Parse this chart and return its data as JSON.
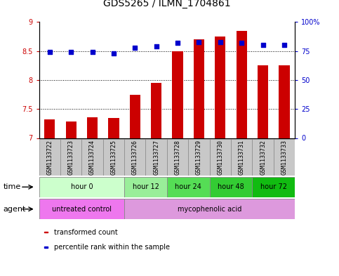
{
  "title": "GDS5265 / ILMN_1704861",
  "samples": [
    "GSM1133722",
    "GSM1133723",
    "GSM1133724",
    "GSM1133725",
    "GSM1133726",
    "GSM1133727",
    "GSM1133728",
    "GSM1133729",
    "GSM1133730",
    "GSM1133731",
    "GSM1133732",
    "GSM1133733"
  ],
  "bar_values": [
    7.32,
    7.28,
    7.36,
    7.34,
    7.75,
    7.95,
    8.5,
    8.7,
    8.75,
    8.85,
    8.25,
    8.25
  ],
  "dot_values": [
    74,
    74,
    74,
    73,
    78,
    79,
    82,
    83,
    83,
    82,
    80,
    80
  ],
  "ylim_left": [
    7,
    9
  ],
  "ylim_right": [
    0,
    100
  ],
  "yticks_left": [
    7,
    7.5,
    8,
    8.5,
    9
  ],
  "yticks_right": [
    0,
    25,
    50,
    75,
    100
  ],
  "yticklabels_right": [
    "0",
    "25",
    "50",
    "75",
    "100%"
  ],
  "bar_color": "#cc0000",
  "dot_color": "#0000cc",
  "bar_bottom": 7,
  "time_groups": [
    {
      "label": "hour 0",
      "start": 0,
      "end": 4,
      "color": "#ccffcc"
    },
    {
      "label": "hour 12",
      "start": 4,
      "end": 6,
      "color": "#99ee99"
    },
    {
      "label": "hour 24",
      "start": 6,
      "end": 8,
      "color": "#55dd55"
    },
    {
      "label": "hour 48",
      "start": 8,
      "end": 10,
      "color": "#33cc33"
    },
    {
      "label": "hour 72",
      "start": 10,
      "end": 12,
      "color": "#11bb11"
    }
  ],
  "agent_groups": [
    {
      "label": "untreated control",
      "start": 0,
      "end": 4,
      "color": "#ee77ee"
    },
    {
      "label": "mycophenolic acid",
      "start": 4,
      "end": 12,
      "color": "#dd99dd"
    }
  ],
  "tick_label_color_left": "#cc0000",
  "tick_label_color_right": "#0000cc",
  "legend_items": [
    {
      "label": "transformed count",
      "color": "#cc0000"
    },
    {
      "label": "percentile rank within the sample",
      "color": "#0000cc"
    }
  ],
  "time_row_label": "time",
  "agent_row_label": "agent",
  "title_fontsize": 10,
  "tick_fontsize": 7,
  "sample_fontsize": 6,
  "label_fontsize": 7,
  "legend_fontsize": 7
}
